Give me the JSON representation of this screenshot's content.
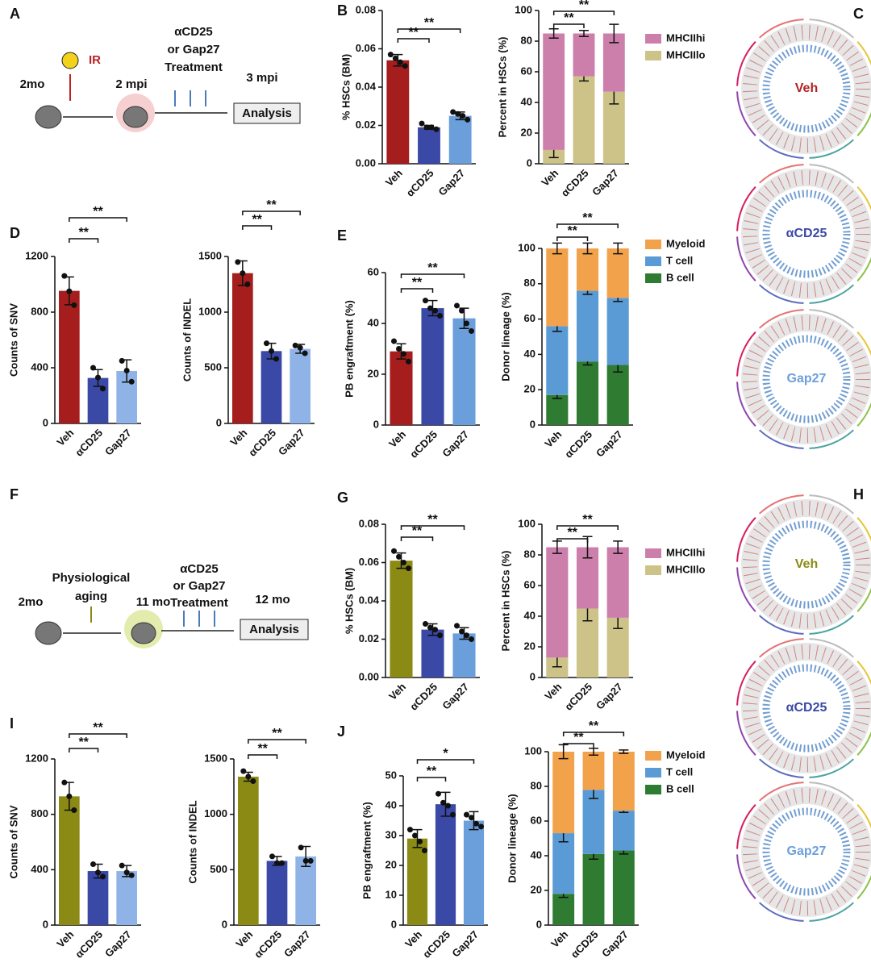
{
  "panel_labels": [
    "A",
    "B",
    "C",
    "D",
    "E",
    "F",
    "G",
    "H",
    "I",
    "J"
  ],
  "schematic_a": {
    "start": "2mo",
    "insult": "IR",
    "mid": "2 mpi",
    "treatment": [
      "αCD25",
      "or Gap27",
      "Treatment"
    ],
    "end": "3 mpi",
    "analysis": "Analysis"
  },
  "schematic_f": {
    "start": "2mo",
    "insult": [
      "Physiological",
      "aging"
    ],
    "mid": "11 mo",
    "treatment": [
      "αCD25",
      "or Gap27",
      "Treatment"
    ],
    "end": "12 mo",
    "analysis": "Analysis"
  },
  "circos_c": [
    "Veh",
    "αCD25",
    "Gap27"
  ],
  "circos_h": [
    "Veh",
    "αCD25",
    "Gap27"
  ],
  "chart_data": [
    {
      "type": "bar",
      "ylabel": "% HSCs (BM)",
      "categories": [
        "Veh",
        "αCD25",
        "Gap27"
      ],
      "colors": [
        "#a51d1d",
        "#3a48a6",
        "#6b9fdc"
      ],
      "values": [
        0.054,
        0.019,
        0.025
      ],
      "errors": [
        0.003,
        0.001,
        0.002
      ],
      "points": [
        [
          0.057,
          0.055,
          0.053,
          0.051
        ],
        [
          0.021,
          0.019,
          0.019,
          0.018
        ],
        [
          0.027,
          0.026,
          0.025,
          0.023
        ]
      ],
      "ylim": [
        0,
        0.08
      ],
      "yticks": [
        {
          "value": 0,
          "label": "0.00"
        },
        0.02,
        0.04,
        0.06,
        0.08
      ],
      "comparisons": [
        {
          "pair": [
            "Veh",
            "αCD25"
          ],
          "label": "**"
        },
        {
          "pair": [
            "Veh",
            "Gap27"
          ],
          "label": "**"
        }
      ]
    },
    {
      "type": "stacked_bar",
      "ylabel": "Percent in HSCs (%)",
      "categories": [
        "Veh",
        "αCD25",
        "Gap27"
      ],
      "series": [
        {
          "name": "MHCIIhi",
          "color": "#cc7fab",
          "values": [
            76,
            28,
            38
          ],
          "errors": [
            3,
            2,
            6
          ]
        },
        {
          "name": "MHCIIlo",
          "color": "#cdc388",
          "values": [
            9,
            57,
            47
          ],
          "errors": [
            5,
            3,
            8
          ]
        }
      ],
      "ylim": [
        0,
        100
      ],
      "yticks": [
        0,
        20,
        40,
        60,
        80,
        100
      ],
      "comparisons": [
        {
          "pair": [
            "Veh",
            "αCD25"
          ],
          "label": "**"
        },
        {
          "pair": [
            "Veh",
            "Gap27"
          ],
          "label": "**"
        }
      ]
    },
    {
      "type": "bar",
      "ylabel": "Counts of SNV",
      "categories": [
        "Veh",
        "αCD25",
        "Gap27"
      ],
      "colors": [
        "#a51d1d",
        "#3a48a6",
        "#8fb3e6"
      ],
      "values": [
        953,
        327,
        377
      ],
      "errors": [
        100,
        60,
        80
      ],
      "points": [
        [
          1060,
          950,
          850
        ],
        [
          400,
          330,
          250
        ],
        [
          450,
          380,
          300
        ]
      ],
      "ylim": [
        0,
        1200
      ],
      "yticks": [
        0,
        400,
        800,
        1200
      ],
      "comparisons": [
        {
          "pair": [
            "Veh",
            "αCD25"
          ],
          "label": "**"
        },
        {
          "pair": [
            "Veh",
            "Gap27"
          ],
          "label": "**"
        }
      ]
    },
    {
      "type": "bar",
      "ylabel": "Counts of INDEL",
      "categories": [
        "Veh",
        "αCD25",
        "Gap27"
      ],
      "colors": [
        "#a51d1d",
        "#3a48a6",
        "#8fb3e6"
      ],
      "values": [
        1350,
        650,
        670
      ],
      "errors": [
        110,
        70,
        40
      ],
      "points": [
        [
          1450,
          1350,
          1250
        ],
        [
          720,
          650,
          580
        ],
        [
          700,
          680,
          630
        ]
      ],
      "ylim": [
        0,
        1500
      ],
      "yticks": [
        0,
        500,
        1000,
        1500
      ],
      "comparisons": [
        {
          "pair": [
            "Veh",
            "αCD25"
          ],
          "label": "**"
        },
        {
          "pair": [
            "Veh",
            "Gap27"
          ],
          "label": "**"
        }
      ]
    },
    {
      "type": "bar",
      "ylabel": "PB engraftment (%)",
      "categories": [
        "Veh",
        "αCD25",
        "Gap27"
      ],
      "colors": [
        "#a51d1d",
        "#3a48a6",
        "#6b9fdc"
      ],
      "values": [
        29,
        46,
        42
      ],
      "errors": [
        3,
        3,
        4
      ],
      "points": [
        [
          33,
          30,
          28,
          25
        ],
        [
          49,
          46,
          45,
          43
        ],
        [
          47,
          45,
          40,
          37
        ]
      ],
      "ylim": [
        0,
        60
      ],
      "yticks": [
        0,
        20,
        40,
        60
      ],
      "comparisons": [
        {
          "pair": [
            "Veh",
            "αCD25"
          ],
          "label": "**"
        },
        {
          "pair": [
            "Veh",
            "Gap27"
          ],
          "label": "**"
        }
      ]
    },
    {
      "type": "stacked_bar",
      "ylabel": "Donor lineage (%)",
      "categories": [
        "Veh",
        "αCD25",
        "Gap27"
      ],
      "series": [
        {
          "name": "Myeloid",
          "color": "#f2a24b",
          "values": [
            44,
            24,
            28
          ],
          "errors": [
            3,
            3,
            3
          ]
        },
        {
          "name": "T cell",
          "color": "#5b9bd5",
          "values": [
            39,
            40,
            38
          ],
          "errors": [
            3,
            2,
            2
          ]
        },
        {
          "name": "B cell",
          "color": "#2e7b31",
          "values": [
            17,
            36,
            34
          ],
          "errors": [
            2,
            2,
            4
          ]
        }
      ],
      "ylim": [
        0,
        100
      ],
      "yticks": [
        0,
        20,
        40,
        60,
        80,
        100
      ],
      "comparisons": [
        {
          "pair": [
            "Veh",
            "αCD25"
          ],
          "label": "**"
        },
        {
          "pair": [
            "Veh",
            "Gap27"
          ],
          "label": "**"
        }
      ]
    },
    {
      "type": "bar",
      "ylabel": "% HSCs (BM)",
      "categories": [
        "Veh",
        "αCD25",
        "Gap27"
      ],
      "colors": [
        "#8a8a14",
        "#3a48a6",
        "#6b9fdc"
      ],
      "values": [
        0.061,
        0.025,
        0.023
      ],
      "errors": [
        0.004,
        0.003,
        0.003
      ],
      "points": [
        [
          0.066,
          0.063,
          0.06,
          0.057
        ],
        [
          0.028,
          0.026,
          0.025,
          0.022
        ],
        [
          0.027,
          0.024,
          0.022,
          0.02
        ]
      ],
      "ylim": [
        0,
        0.08
      ],
      "yticks": [
        {
          "value": 0,
          "label": "0.00"
        },
        0.02,
        0.04,
        0.06,
        0.08
      ],
      "comparisons": [
        {
          "pair": [
            "Veh",
            "αCD25"
          ],
          "label": "**"
        },
        {
          "pair": [
            "Veh",
            "Gap27"
          ],
          "label": "**"
        }
      ]
    },
    {
      "type": "stacked_bar",
      "ylabel": "Percent in HSCs (%)",
      "categories": [
        "Veh",
        "αCD25",
        "Gap27"
      ],
      "series": [
        {
          "name": "MHCIIhi",
          "color": "#cc7fab",
          "values": [
            72,
            40,
            46
          ],
          "errors": [
            4,
            7,
            4
          ]
        },
        {
          "name": "MHCIIlo",
          "color": "#cdc388",
          "values": [
            13,
            45,
            39
          ],
          "errors": [
            6,
            8,
            7
          ]
        }
      ],
      "ylim": [
        0,
        100
      ],
      "yticks": [
        0,
        20,
        40,
        60,
        80,
        100
      ],
      "comparisons": [
        {
          "pair": [
            "Veh",
            "αCD25"
          ],
          "label": "**"
        },
        {
          "pair": [
            "Veh",
            "Gap27"
          ],
          "label": "**"
        }
      ]
    },
    {
      "type": "bar",
      "ylabel": "Counts of SNV",
      "categories": [
        "Veh",
        "αCD25",
        "Gap27"
      ],
      "colors": [
        "#8a8a14",
        "#3a48a6",
        "#8fb3e6"
      ],
      "values": [
        930,
        390,
        390
      ],
      "errors": [
        100,
        50,
        40
      ],
      "points": [
        [
          1030,
          930,
          830
        ],
        [
          440,
          380,
          350
        ],
        [
          430,
          380,
          360
        ]
      ],
      "ylim": [
        0,
        1200
      ],
      "yticks": [
        0,
        400,
        800,
        1200
      ],
      "comparisons": [
        {
          "pair": [
            "Veh",
            "αCD25"
          ],
          "label": "**"
        },
        {
          "pair": [
            "Veh",
            "Gap27"
          ],
          "label": "**"
        }
      ]
    },
    {
      "type": "bar",
      "ylabel": "Counts of INDEL",
      "categories": [
        "Veh",
        "αCD25",
        "Gap27"
      ],
      "colors": [
        "#8a8a14",
        "#3a48a6",
        "#8fb3e6"
      ],
      "values": [
        1340,
        580,
        620
      ],
      "errors": [
        40,
        40,
        90
      ],
      "points": [
        [
          1390,
          1340,
          1300
        ],
        [
          620,
          560,
          560
        ],
        [
          700,
          580,
          580
        ]
      ],
      "ylim": [
        0,
        1500
      ],
      "yticks": [
        0,
        500,
        1000,
        1500
      ],
      "comparisons": [
        {
          "pair": [
            "Veh",
            "αCD25"
          ],
          "label": "**"
        },
        {
          "pair": [
            "Veh",
            "Gap27"
          ],
          "label": "**"
        }
      ]
    },
    {
      "type": "bar",
      "ylabel": "PB engraftment (%)",
      "categories": [
        "Veh",
        "αCD25",
        "Gap27"
      ],
      "colors": [
        "#8a8a14",
        "#3a48a6",
        "#6b9fdc"
      ],
      "values": [
        29,
        40.5,
        35
      ],
      "errors": [
        3,
        4,
        3
      ],
      "points": [
        [
          32,
          30,
          28,
          25
        ],
        [
          44,
          41,
          40,
          37
        ],
        [
          37,
          36,
          34,
          33
        ]
      ],
      "ylim": [
        0,
        50
      ],
      "yticks": [
        0,
        10,
        20,
        30,
        40,
        50
      ],
      "comparisons": [
        {
          "pair": [
            "Veh",
            "αCD25"
          ],
          "label": "**"
        },
        {
          "pair": [
            "Veh",
            "Gap27"
          ],
          "label": "*"
        }
      ]
    },
    {
      "type": "stacked_bar",
      "ylabel": "Donor lineage (%)",
      "categories": [
        "Veh",
        "αCD25",
        "Gap27"
      ],
      "series": [
        {
          "name": "Myeloid",
          "color": "#f2a24b",
          "values": [
            47,
            22,
            34
          ],
          "errors": [
            4,
            2,
            1
          ]
        },
        {
          "name": "T cell",
          "color": "#5b9bd5",
          "values": [
            35,
            37,
            23
          ],
          "errors": [
            5,
            5,
            1
          ]
        },
        {
          "name": "B cell",
          "color": "#2e7b31",
          "values": [
            18,
            41,
            43
          ],
          "errors": [
            2,
            3,
            2
          ]
        }
      ],
      "ylim": [
        0,
        100
      ],
      "yticks": [
        0,
        20,
        40,
        60,
        80,
        100
      ],
      "comparisons": [
        {
          "pair": [
            "Veh",
            "αCD25"
          ],
          "label": "**"
        },
        {
          "pair": [
            "Veh",
            "Gap27"
          ],
          "label": "**"
        }
      ]
    }
  ]
}
